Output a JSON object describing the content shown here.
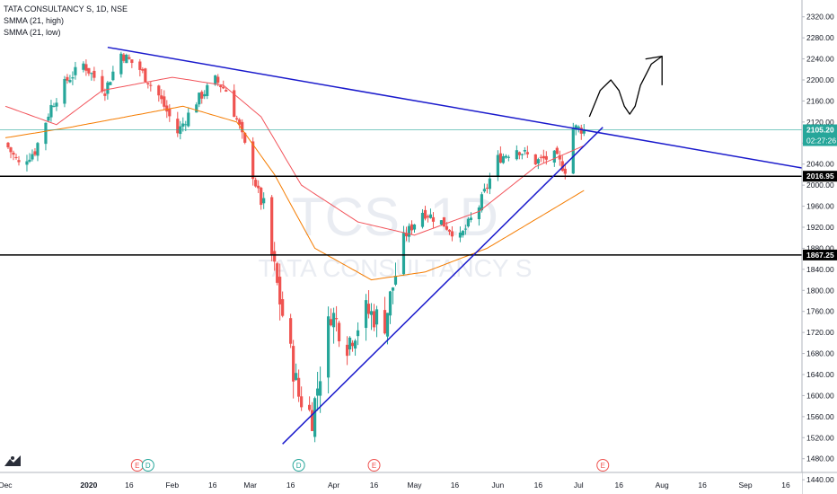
{
  "legend": {
    "symbol_line": "TATA CONSULTANCY S, 1D, NSE",
    "smma_high": "SMMA (21, high)",
    "smma_low": "SMMA (21, low)"
  },
  "watermark": {
    "ticker": "TCS, 1D",
    "name": "TATA CONSULTANCY S"
  },
  "colors": {
    "up": "#26a69a",
    "down": "#ef5350",
    "trendline": "#1a1acc",
    "level": "#000000",
    "smma_high": "#f2545b",
    "smma_low": "#f57c00",
    "price_line": "#26a69a",
    "axis_text": "#131722",
    "event_e": "#ef5350",
    "event_d": "#26a69a"
  },
  "chart_data": {
    "type": "candlestick",
    "y_axis": {
      "min": 1430,
      "max": 2340,
      "ticks": [
        2320,
        2280,
        2240,
        2200,
        2160,
        2120,
        2080,
        2040,
        2000,
        1960,
        1920,
        1880,
        1840,
        1800,
        1760,
        1720,
        1680,
        1640,
        1600,
        1560,
        1520,
        1480,
        1440
      ],
      "tick_labels": [
        "2320.00",
        "2280.00",
        "2240.00",
        "2200.00",
        "2160.00",
        "2120.00",
        "2080.00",
        "2040.00",
        "2000.00",
        "1960.00",
        "1920.00",
        "1880.00",
        "1840.00",
        "1800.00",
        "1760.00",
        "1720.00",
        "1680.00",
        "1640.00",
        "1600.00",
        "1560.00",
        "1520.00",
        "1480.00",
        "1440.00"
      ]
    },
    "x_axis": {
      "start": "2019-12-01",
      "end": "2020-09-22",
      "ticks": [
        {
          "date": "2019-12-01",
          "label": "Dec"
        },
        {
          "date": "2020-01-01",
          "label": "2020"
        },
        {
          "date": "2020-01-16",
          "label": "16"
        },
        {
          "date": "2020-02-01",
          "label": "Feb"
        },
        {
          "date": "2020-02-16",
          "label": "16"
        },
        {
          "date": "2020-03-01",
          "label": "Mar"
        },
        {
          "date": "2020-03-16",
          "label": "16"
        },
        {
          "date": "2020-04-01",
          "label": "Apr"
        },
        {
          "date": "2020-04-16",
          "label": "16"
        },
        {
          "date": "2020-05-01",
          "label": "May"
        },
        {
          "date": "2020-05-16",
          "label": "16"
        },
        {
          "date": "2020-06-01",
          "label": "Jun"
        },
        {
          "date": "2020-06-16",
          "label": "16"
        },
        {
          "date": "2020-07-01",
          "label": "Jul"
        },
        {
          "date": "2020-07-16",
          "label": "16"
        },
        {
          "date": "2020-08-01",
          "label": "Aug"
        },
        {
          "date": "2020-08-16",
          "label": "16"
        },
        {
          "date": "2020-09-01",
          "label": "Sep"
        },
        {
          "date": "2020-09-16",
          "label": "16"
        }
      ]
    },
    "anchors": [
      {
        "date": "2019-12-01",
        "close": 2080
      },
      {
        "date": "2019-12-06",
        "close": 2040
      },
      {
        "date": "2019-12-12",
        "close": 2065
      },
      {
        "date": "2019-12-18",
        "close": 2150
      },
      {
        "date": "2019-12-24",
        "close": 2200
      },
      {
        "date": "2019-12-30",
        "close": 2230
      },
      {
        "date": "2020-01-07",
        "close": 2180
      },
      {
        "date": "2020-01-13",
        "close": 2250
      },
      {
        "date": "2020-01-20",
        "close": 2220
      },
      {
        "date": "2020-01-27",
        "close": 2170
      },
      {
        "date": "2020-02-03",
        "close": 2100
      },
      {
        "date": "2020-02-10",
        "close": 2160
      },
      {
        "date": "2020-02-17",
        "close": 2200
      },
      {
        "date": "2020-02-21",
        "close": 2180
      },
      {
        "date": "2020-02-26",
        "close": 2110
      },
      {
        "date": "2020-03-02",
        "close": 2020
      },
      {
        "date": "2020-03-06",
        "close": 1950
      },
      {
        "date": "2020-03-12",
        "close": 1780
      },
      {
        "date": "2020-03-19",
        "close": 1600
      },
      {
        "date": "2020-03-24",
        "close": 1560
      },
      {
        "date": "2020-03-31",
        "close": 1760
      },
      {
        "date": "2020-04-06",
        "close": 1700
      },
      {
        "date": "2020-04-13",
        "close": 1760
      },
      {
        "date": "2020-04-20",
        "close": 1740
      },
      {
        "date": "2020-04-27",
        "close": 1900
      },
      {
        "date": "2020-05-04",
        "close": 1950
      },
      {
        "date": "2020-05-11",
        "close": 1930
      },
      {
        "date": "2020-05-18",
        "close": 1900
      },
      {
        "date": "2020-05-25",
        "close": 1960
      },
      {
        "date": "2020-06-01",
        "close": 2050
      },
      {
        "date": "2020-06-08",
        "close": 2070
      },
      {
        "date": "2020-06-15",
        "close": 2045
      },
      {
        "date": "2020-06-22",
        "close": 2055
      },
      {
        "date": "2020-06-26",
        "close": 2030
      },
      {
        "date": "2020-06-29",
        "close": 2110
      },
      {
        "date": "2020-07-03",
        "close": 2105
      }
    ],
    "smma_high_anchors": [
      {
        "date": "2019-12-01",
        "value": 2150
      },
      {
        "date": "2019-12-20",
        "value": 2115
      },
      {
        "date": "2020-01-06",
        "value": 2180
      },
      {
        "date": "2020-02-01",
        "value": 2205
      },
      {
        "date": "2020-02-20",
        "value": 2190
      },
      {
        "date": "2020-03-05",
        "value": 2130
      },
      {
        "date": "2020-03-20",
        "value": 2000
      },
      {
        "date": "2020-04-10",
        "value": 1930
      },
      {
        "date": "2020-05-01",
        "value": 1905
      },
      {
        "date": "2020-05-25",
        "value": 1950
      },
      {
        "date": "2020-06-15",
        "value": 2035
      },
      {
        "date": "2020-07-03",
        "value": 2075
      }
    ],
    "smma_low_anchors": [
      {
        "date": "2019-12-01",
        "value": 2090
      },
      {
        "date": "2019-12-25",
        "value": 2110
      },
      {
        "date": "2020-01-15",
        "value": 2130
      },
      {
        "date": "2020-02-05",
        "value": 2150
      },
      {
        "date": "2020-02-25",
        "value": 2120
      },
      {
        "date": "2020-03-10",
        "value": 2020
      },
      {
        "date": "2020-03-25",
        "value": 1880
      },
      {
        "date": "2020-04-15",
        "value": 1820
      },
      {
        "date": "2020-05-05",
        "value": 1835
      },
      {
        "date": "2020-05-28",
        "value": 1880
      },
      {
        "date": "2020-06-20",
        "value": 1950
      },
      {
        "date": "2020-07-03",
        "value": 1990
      }
    ],
    "drawings": {
      "resistance_line": [
        {
          "date": "2020-01-08",
          "price": 2262
        },
        {
          "date": "2020-09-25",
          "price": 2030
        }
      ],
      "support_line": [
        {
          "date": "2020-03-13",
          "price": 1508
        },
        {
          "date": "2020-07-10",
          "price": 2110
        }
      ],
      "horizontal_levels": [
        {
          "price": 2016.95,
          "label": "2016.95"
        },
        {
          "price": 1867.25,
          "label": "1867.25"
        }
      ],
      "projection_path": [
        {
          "date": "2020-07-05",
          "price": 2130
        },
        {
          "date": "2020-07-09",
          "price": 2180
        },
        {
          "date": "2020-07-13",
          "price": 2200
        },
        {
          "date": "2020-07-16",
          "price": 2180
        },
        {
          "date": "2020-07-18",
          "price": 2150
        },
        {
          "date": "2020-07-20",
          "price": 2135
        },
        {
          "date": "2020-07-22",
          "price": 2150
        },
        {
          "date": "2020-07-24",
          "price": 2190
        },
        {
          "date": "2020-07-28",
          "price": 2230
        },
        {
          "date": "2020-08-01",
          "price": 2245
        },
        {
          "date": "2020-07-26",
          "price": 2240
        },
        {
          "date": "2020-08-01",
          "price": 2245
        },
        {
          "date": "2020-08-01",
          "price": 2190
        }
      ]
    },
    "last_price": {
      "value": 2105.2,
      "label": "2105.20",
      "countdown": "02:27:26"
    },
    "events": [
      {
        "date": "2020-01-19",
        "type": "E"
      },
      {
        "date": "2020-01-23",
        "type": "D"
      },
      {
        "date": "2020-03-19",
        "type": "D"
      },
      {
        "date": "2020-04-16",
        "type": "E"
      },
      {
        "date": "2020-07-10",
        "type": "E"
      }
    ]
  }
}
